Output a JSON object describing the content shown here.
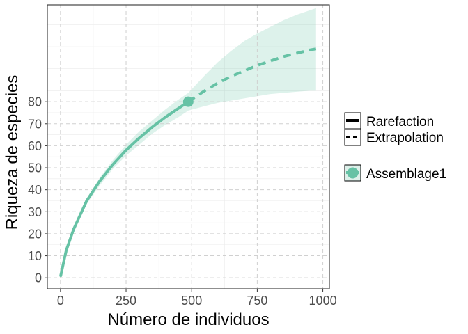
{
  "chart_data": {
    "type": "line",
    "xlabel": "Número de individuos",
    "ylabel": "Riqueza de especies",
    "xlim": [
      -50,
      1025
    ],
    "ylim": [
      -5,
      124
    ],
    "x_ticks": [
      0,
      250,
      500,
      750,
      1000
    ],
    "x_tick_labels": [
      "0",
      "250",
      "500",
      "750",
      "1000"
    ],
    "y_ticks": [
      0,
      10,
      20,
      30,
      40,
      50,
      60,
      70,
      80
    ],
    "y_tick_labels": [
      "0",
      "10",
      "20",
      "30",
      "40",
      "50",
      "60",
      "70",
      "80"
    ],
    "grid": true,
    "legend_position": "right",
    "series": [
      {
        "name": "Assemblage1",
        "color": "#66c2a5",
        "reference_point": {
          "x": 487,
          "y": 80
        },
        "rarefaction": [
          [
            1,
            1
          ],
          [
            22,
            12.5
          ],
          [
            50,
            22
          ],
          [
            100,
            35
          ],
          [
            150,
            44
          ],
          [
            200,
            51.5
          ],
          [
            250,
            58
          ],
          [
            300,
            63.5
          ],
          [
            350,
            68.5
          ],
          [
            400,
            73
          ],
          [
            450,
            77
          ],
          [
            487,
            80
          ]
        ],
        "extrapolation": [
          [
            487,
            80
          ],
          [
            550,
            85
          ],
          [
            600,
            88.5
          ],
          [
            650,
            91.5
          ],
          [
            700,
            94
          ],
          [
            750,
            96.5
          ],
          [
            800,
            98.5
          ],
          [
            850,
            100.5
          ],
          [
            900,
            102
          ],
          [
            950,
            103.5
          ],
          [
            974,
            104
          ]
        ],
        "ci_upper": [
          [
            1,
            1
          ],
          [
            50,
            22.5
          ],
          [
            100,
            36
          ],
          [
            150,
            45.5
          ],
          [
            200,
            53.5
          ],
          [
            250,
            60.5
          ],
          [
            300,
            66.5
          ],
          [
            350,
            71.5
          ],
          [
            400,
            76.5
          ],
          [
            450,
            81
          ],
          [
            487,
            84
          ],
          [
            550,
            92
          ],
          [
            600,
            98
          ],
          [
            650,
            103
          ],
          [
            700,
            107.5
          ],
          [
            750,
            111
          ],
          [
            800,
            114
          ],
          [
            850,
            117
          ],
          [
            900,
            119.5
          ],
          [
            950,
            121.5
          ],
          [
            974,
            122.5
          ]
        ],
        "ci_lower": [
          [
            1,
            1
          ],
          [
            50,
            21
          ],
          [
            100,
            33.5
          ],
          [
            150,
            42
          ],
          [
            200,
            49.5
          ],
          [
            250,
            55.5
          ],
          [
            300,
            60.5
          ],
          [
            350,
            65.5
          ],
          [
            400,
            69.5
          ],
          [
            450,
            73
          ],
          [
            487,
            76
          ],
          [
            550,
            78
          ],
          [
            600,
            79.5
          ],
          [
            650,
            80.5
          ],
          [
            700,
            81.5
          ],
          [
            750,
            82.5
          ],
          [
            800,
            83.5
          ],
          [
            850,
            84
          ],
          [
            900,
            84.5
          ],
          [
            950,
            85
          ],
          [
            974,
            85
          ]
        ]
      }
    ],
    "legend": {
      "line_types": [
        {
          "label": "Rarefaction",
          "style": "solid"
        },
        {
          "label": "Extrapolation",
          "style": "dashed"
        }
      ],
      "assemblages": [
        {
          "label": "Assemblage1",
          "color": "#66c2a5"
        }
      ]
    }
  }
}
